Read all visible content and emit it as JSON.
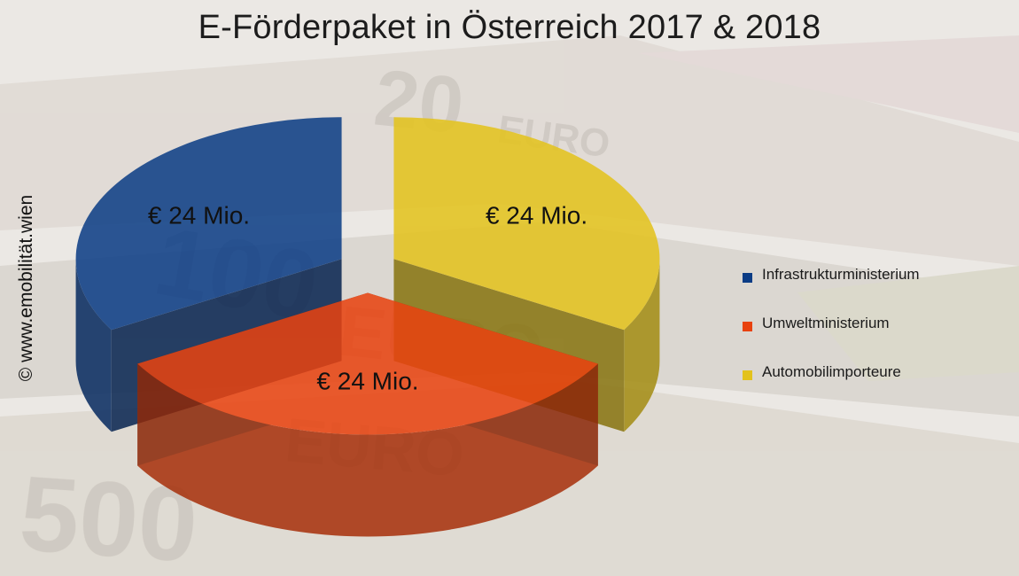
{
  "title": "E-Förderpaket in Österreich 2017 & 2018",
  "watermark": "© www.emobilität.wien",
  "colors": {
    "Infrastrukturministerium": "#0b3c85",
    "Umweltministerium": "#e8420f",
    "Automobilimporteure": "#e3c21b"
  },
  "chart_data": {
    "type": "pie",
    "title": "E-Förderpaket in Österreich 2017 & 2018",
    "style": "3d-exploded",
    "legend_position": "right",
    "categories": [
      "Infrastrukturministerium",
      "Umweltministerium",
      "Automobilimporteure"
    ],
    "values": [
      24,
      24,
      24
    ],
    "data_labels": [
      "€ 24 Mio.",
      "€ 24 Mio.",
      "€ 24 Mio."
    ],
    "unit": "Mio. €"
  }
}
